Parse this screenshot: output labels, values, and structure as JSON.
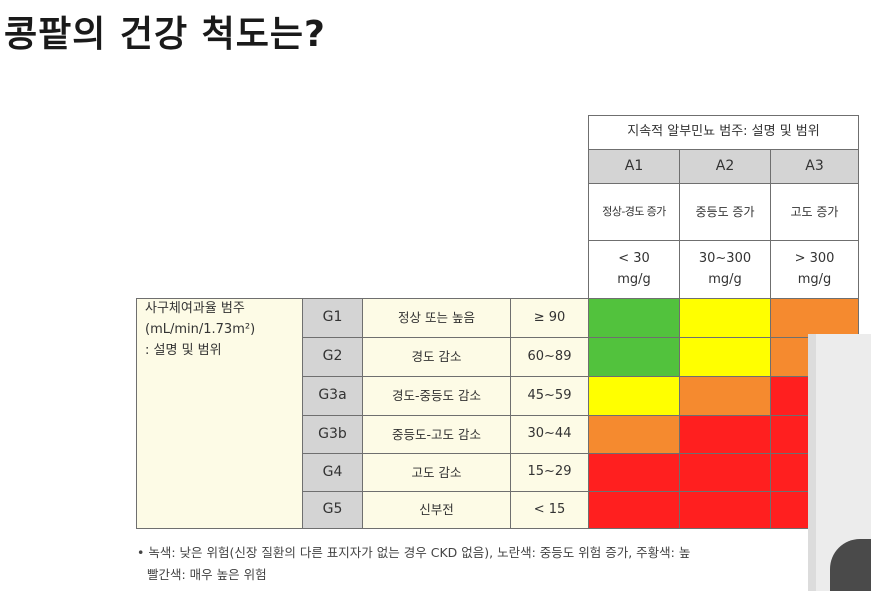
{
  "title": "콩팥의 건강 척도는?",
  "header": {
    "main": "지속적 알부민뇨 범주: 설명 및 범위",
    "columns": [
      {
        "code": "A1",
        "desc": "정상-경도 증가",
        "range_line1": "< 30",
        "range_line2": "mg/g"
      },
      {
        "code": "A2",
        "desc": "중등도 증가",
        "range_line1": "30~300",
        "range_line2": "mg/g"
      },
      {
        "code": "A3",
        "desc": "고도 증가",
        "range_line1": "> 300",
        "range_line2": "mg/g"
      }
    ]
  },
  "gfr_label": {
    "line1": "사구체여과율 범주",
    "line2": "(mL/min/1.73m²)",
    "line3": ": 설명 및 범위"
  },
  "rows": [
    {
      "code": "G1",
      "desc": "정상 또는 높음",
      "range": "≥ 90",
      "risks": [
        "green",
        "yellow",
        "orange"
      ]
    },
    {
      "code": "G2",
      "desc": "경도 감소",
      "range": "60~89",
      "risks": [
        "green",
        "yellow",
        "orange"
      ]
    },
    {
      "code": "G3a",
      "desc": "경도-중등도 감소",
      "range": "45~59",
      "risks": [
        "yellow",
        "orange",
        "red"
      ]
    },
    {
      "code": "G3b",
      "desc": "중등도-고도 감소",
      "range": "30~44",
      "risks": [
        "orange",
        "red",
        "red"
      ]
    },
    {
      "code": "G4",
      "desc": "고도 감소",
      "range": "15~29",
      "risks": [
        "red",
        "red",
        "red"
      ]
    },
    {
      "code": "G5",
      "desc": "신부전",
      "range": "< 15",
      "risks": [
        "red",
        "red",
        "red"
      ]
    }
  ],
  "colors": {
    "green": "#52c23d",
    "yellow": "#ffff00",
    "orange": "#f58a2f",
    "red": "#ff1f1f"
  },
  "footnote": {
    "line1": "• 녹색: 낮은 위험(신장 질환의 다른 표지자가 없는 경우 CKD 없음), 노란색: 중등도 위험 증가, 주황색: 높",
    "line2": "빨간색: 매우 높은 위험"
  }
}
